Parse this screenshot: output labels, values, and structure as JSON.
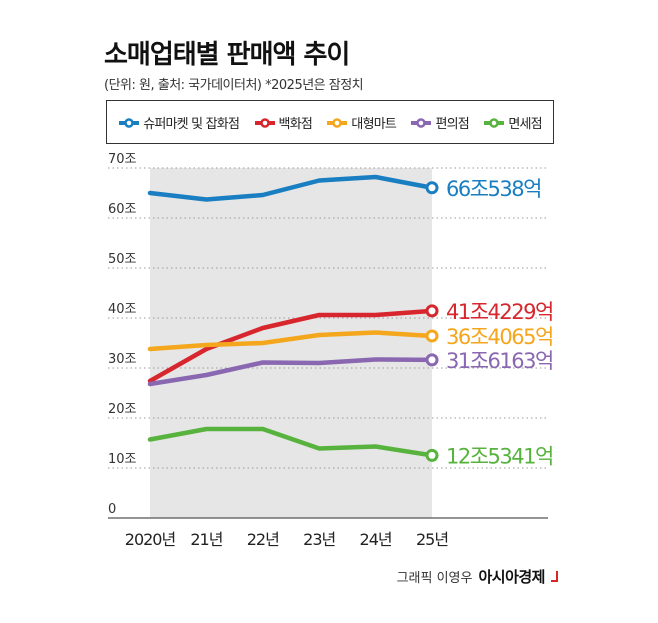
{
  "header": {
    "title": "소매업태별 판매액 추이",
    "subtitle": "(단위: 원, 출처: 국가데이터처) *2025년은 잠정치"
  },
  "credit": {
    "text": "그래픽 이영우",
    "brand": "아시아경제"
  },
  "chart_data": {
    "type": "line",
    "title": "소매업태별 판매액 추이",
    "x": [
      "2020년",
      "21년",
      "22년",
      "23년",
      "24년",
      "25년"
    ],
    "y_ticks": [
      "0",
      "10조",
      "20조",
      "30조",
      "40조",
      "50조",
      "60조",
      "70조"
    ],
    "ylim": [
      0,
      70
    ],
    "legend_position": "top",
    "grid": "horizontal-dotted",
    "shaded_region": "2020년–25년",
    "series": [
      {
        "name": "슈퍼마켓 및 잡화점",
        "color": "#1a7fc2",
        "values": [
          65.0,
          63.7,
          64.6,
          67.5,
          68.2,
          66.05
        ],
        "end_label": "66조538억"
      },
      {
        "name": "백화점",
        "color": "#d7262d",
        "values": [
          27.4,
          33.8,
          38.0,
          40.6,
          40.6,
          41.42
        ],
        "end_label": "41조4229억"
      },
      {
        "name": "대형마트",
        "color": "#f4a61d",
        "values": [
          33.8,
          34.6,
          35.0,
          36.6,
          37.1,
          36.41
        ],
        "end_label": "36조4065억"
      },
      {
        "name": "편의점",
        "color": "#8a67b1",
        "values": [
          26.8,
          28.6,
          31.1,
          31.0,
          31.7,
          31.62
        ],
        "end_label": "31조6163억"
      },
      {
        "name": "면세점",
        "color": "#57b33e",
        "values": [
          15.7,
          17.8,
          17.8,
          13.9,
          14.3,
          12.53
        ],
        "end_label": "12조5341억"
      }
    ]
  }
}
